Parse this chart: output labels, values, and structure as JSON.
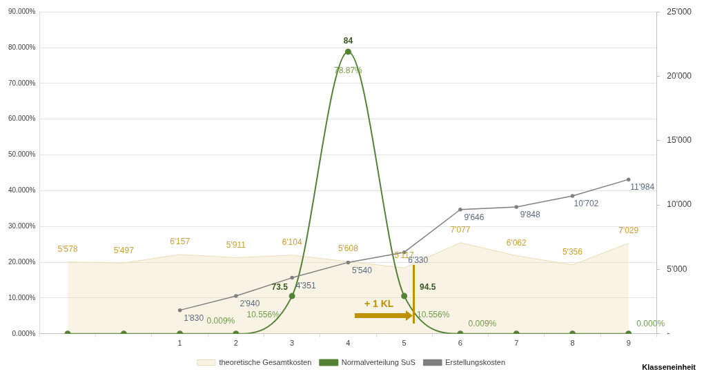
{
  "chart_data": {
    "type": "line",
    "xlabel": "Klasseneinheit",
    "categories": [
      null,
      null,
      "1",
      "2",
      "3",
      "4",
      "5",
      "6",
      "7",
      "8",
      "9"
    ],
    "ylim": [
      0,
      90
    ],
    "yticks": [
      {
        "value": 0,
        "label": "0.000%"
      },
      {
        "value": 10,
        "label": "10.000%"
      },
      {
        "value": 20,
        "label": "20.000%"
      },
      {
        "value": 30,
        "label": "30.000%"
      },
      {
        "value": 40,
        "label": "40.000%"
      },
      {
        "value": 50,
        "label": "50.000%"
      },
      {
        "value": 60,
        "label": "60.000%"
      },
      {
        "value": 70,
        "label": "70.000%"
      },
      {
        "value": 80,
        "label": "80.000%"
      },
      {
        "value": 90,
        "label": "90.000%"
      }
    ],
    "y2lim": [
      0,
      25000
    ],
    "y2ticks": [
      {
        "value": 0,
        "label": "-"
      },
      {
        "value": 5000,
        "label": "5'000"
      },
      {
        "value": 10000,
        "label": "10'000"
      },
      {
        "value": 15000,
        "label": "15'000"
      },
      {
        "value": 20000,
        "label": "20'000"
      },
      {
        "value": 25000,
        "label": "25'000"
      }
    ],
    "grid": "y",
    "legend": "bottom",
    "series": [
      {
        "name": "theoretische Gesamtkosten",
        "type": "area",
        "axis": "y2",
        "color": "#ecdcb4",
        "marker": "none",
        "values": [
          5578,
          5497,
          6157,
          5911,
          6104,
          5608,
          5117,
          7077,
          6062,
          5356,
          7029
        ],
        "value_labels": [
          "5'578",
          "5'497",
          "6'157",
          "5'911",
          "6'104",
          "5'608",
          "5'117",
          "7'077",
          "6'062",
          "5'356",
          "7'029"
        ]
      },
      {
        "name": "Normalverteilung SuS",
        "type": "line",
        "color": "#548235",
        "marker": "circle",
        "values": [
          0,
          0,
          0,
          0.009,
          10.556,
          78.87,
          10.556,
          0.009,
          0,
          0,
          0
        ],
        "value_labels": [
          null,
          null,
          null,
          "0.009%",
          "10.556%",
          "78.87%",
          "10.556%",
          "0.009%",
          null,
          null,
          "0.000%"
        ]
      },
      {
        "name": "Erstellungskosten",
        "type": "line",
        "axis": "y2",
        "color": "#7f7f7f",
        "marker": "circle",
        "values": [
          null,
          null,
          1830,
          2940,
          4351,
          5540,
          6330,
          9646,
          9848,
          10702,
          11984
        ],
        "value_labels": [
          null,
          null,
          "1'830",
          "2'940",
          "4'351",
          "5'540",
          "6'330",
          "9'646",
          "9'848",
          "10'702",
          "11'984"
        ]
      }
    ],
    "annotations": [
      {
        "text": "73.5",
        "x": "3",
        "y": 10.556
      },
      {
        "text": "84",
        "x": "4",
        "y": 78.87
      },
      {
        "text": "94.5",
        "x": "5",
        "y": 10.556
      },
      "+ 1 KL"
    ]
  }
}
